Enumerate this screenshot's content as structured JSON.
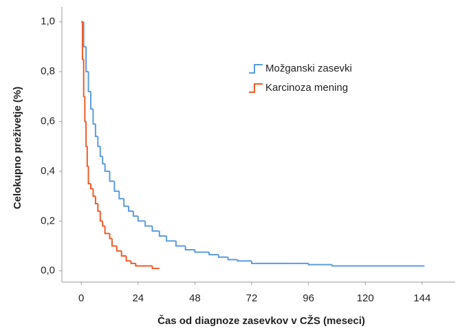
{
  "chart_data": {
    "type": "step",
    "xlabel": "Čas od diagnoze zasevkov v CŽS (meseci)",
    "ylabel": "Celokupno preživetje (%)",
    "xlim": [
      -8.2,
      158
    ],
    "xticks": [
      0,
      24,
      48,
      72,
      96,
      120,
      144
    ],
    "ylim": [
      -0.045,
      1.06
    ],
    "yticks": [
      {
        "value": 0,
        "label": "0,0"
      },
      {
        "value": 0.2,
        "label": "0,2"
      },
      {
        "value": 0.4,
        "label": "0,4"
      },
      {
        "value": 0.6,
        "label": "0,6"
      },
      {
        "value": 0.8,
        "label": "0,8"
      },
      {
        "value": 1,
        "label": "1,0"
      }
    ],
    "legend": "upper right",
    "series": [
      {
        "name": "Možganski zasevki",
        "color": "#5a9be0",
        "x": [
          0,
          1,
          2,
          3,
          4,
          5,
          6,
          7,
          8,
          9,
          10,
          12,
          14,
          16,
          18,
          20,
          22,
          24,
          27,
          30,
          33,
          36,
          40,
          44,
          48,
          54,
          58,
          62,
          66,
          72,
          90,
          96,
          106,
          145
        ],
        "values": [
          1.0,
          0.9,
          0.8,
          0.72,
          0.65,
          0.59,
          0.54,
          0.5,
          0.46,
          0.43,
          0.4,
          0.36,
          0.32,
          0.29,
          0.26,
          0.24,
          0.22,
          0.2,
          0.18,
          0.16,
          0.14,
          0.12,
          0.1,
          0.085,
          0.075,
          0.065,
          0.055,
          0.045,
          0.04,
          0.03,
          0.03,
          0.025,
          0.02,
          0.02
        ]
      },
      {
        "name": "Karcinoza mening",
        "color": "#f05a28",
        "x": [
          0,
          0.5,
          1,
          1.5,
          2,
          2.5,
          3,
          4,
          5,
          6,
          7,
          8,
          9,
          10,
          12,
          13,
          15,
          17,
          19,
          21,
          23,
          28,
          30,
          33
        ],
        "values": [
          1.0,
          0.85,
          0.7,
          0.6,
          0.5,
          0.42,
          0.35,
          0.33,
          0.3,
          0.27,
          0.24,
          0.2,
          0.18,
          0.15,
          0.13,
          0.1,
          0.08,
          0.06,
          0.04,
          0.03,
          0.02,
          0.02,
          0.01,
          0.01
        ]
      }
    ]
  }
}
